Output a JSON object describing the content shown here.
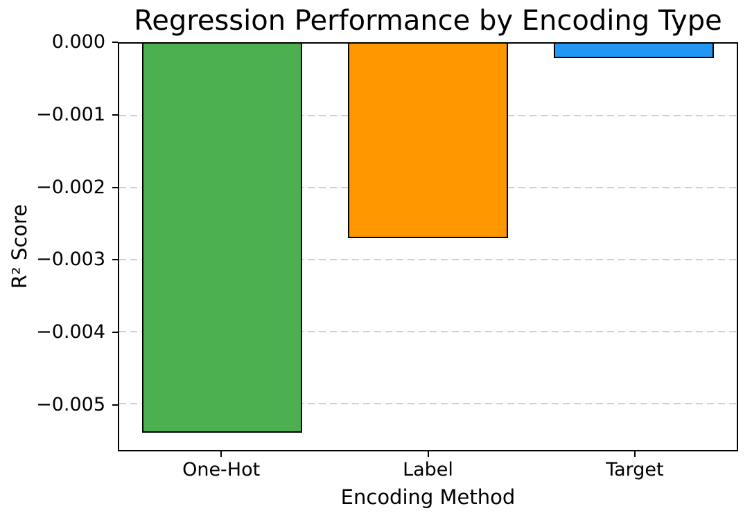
{
  "chart_data": {
    "type": "bar",
    "title": "Regression Performance by Encoding Type",
    "xlabel": "Encoding Method",
    "ylabel": "R² Score",
    "categories": [
      "One-Hot",
      "Label",
      "Target"
    ],
    "values": [
      -0.0054,
      -0.0027,
      -0.0002
    ],
    "bar_colors": [
      "#4CAF50",
      "#FF9800",
      "#2196F3"
    ],
    "bar_edge_color": "#000000",
    "bar_width_fraction": 0.26,
    "ylim": [
      -0.00564,
      0
    ],
    "yticks": [
      0,
      -0.001,
      -0.002,
      -0.003,
      -0.004,
      -0.005
    ],
    "ytick_labels": [
      "0.000",
      "−0.001",
      "−0.002",
      "−0.003",
      "−0.004",
      "−0.005"
    ],
    "grid": "horizontal-dashed",
    "grid_color": "#cfcfcf",
    "grid_behind_bars": true,
    "legend": "none",
    "plot_background": "#ffffff"
  }
}
